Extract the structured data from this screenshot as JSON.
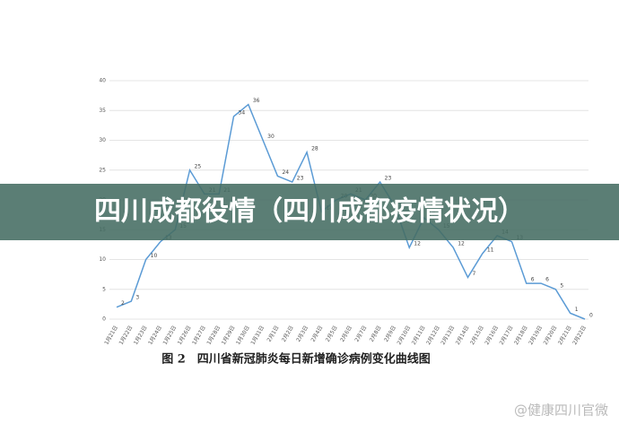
{
  "chart_data": {
    "type": "line",
    "caption": "图 2　四川省新冠肺炎每日新增确诊病例变化曲线图",
    "banner": "四川成都役情（四川成都疫情状况）",
    "watermark": "@健康四川官微",
    "categories": [
      "1月21日",
      "1月22日",
      "1月23日",
      "1月24日",
      "1月25日",
      "1月26日",
      "1月27日",
      "1月28日",
      "1月29日",
      "1月30日",
      "1月31日",
      "2月1日",
      "2月2日",
      "2月3日",
      "2月4日",
      "2月5日",
      "2月6日",
      "2月7日",
      "2月8日",
      "2月9日",
      "2月10日",
      "2月11日",
      "2月12日",
      "2月13日",
      "2月14日",
      "2月15日",
      "2月16日",
      "2月17日",
      "2月18日",
      "2月19日",
      "2月20日",
      "2月21日",
      "2月22日"
    ],
    "values": [
      2,
      3,
      10,
      13,
      15,
      25,
      21,
      21,
      34,
      36,
      30,
      24,
      23,
      28,
      18,
      20,
      21,
      20,
      23,
      19,
      12,
      17,
      15,
      12,
      7,
      11,
      14,
      13,
      6,
      6,
      5,
      1,
      0
    ],
    "color": "#5b9bd5",
    "ylim": [
      0,
      40
    ],
    "yticks": [
      0,
      5,
      10,
      15,
      20,
      25,
      30,
      35,
      40
    ],
    "grid": true
  }
}
